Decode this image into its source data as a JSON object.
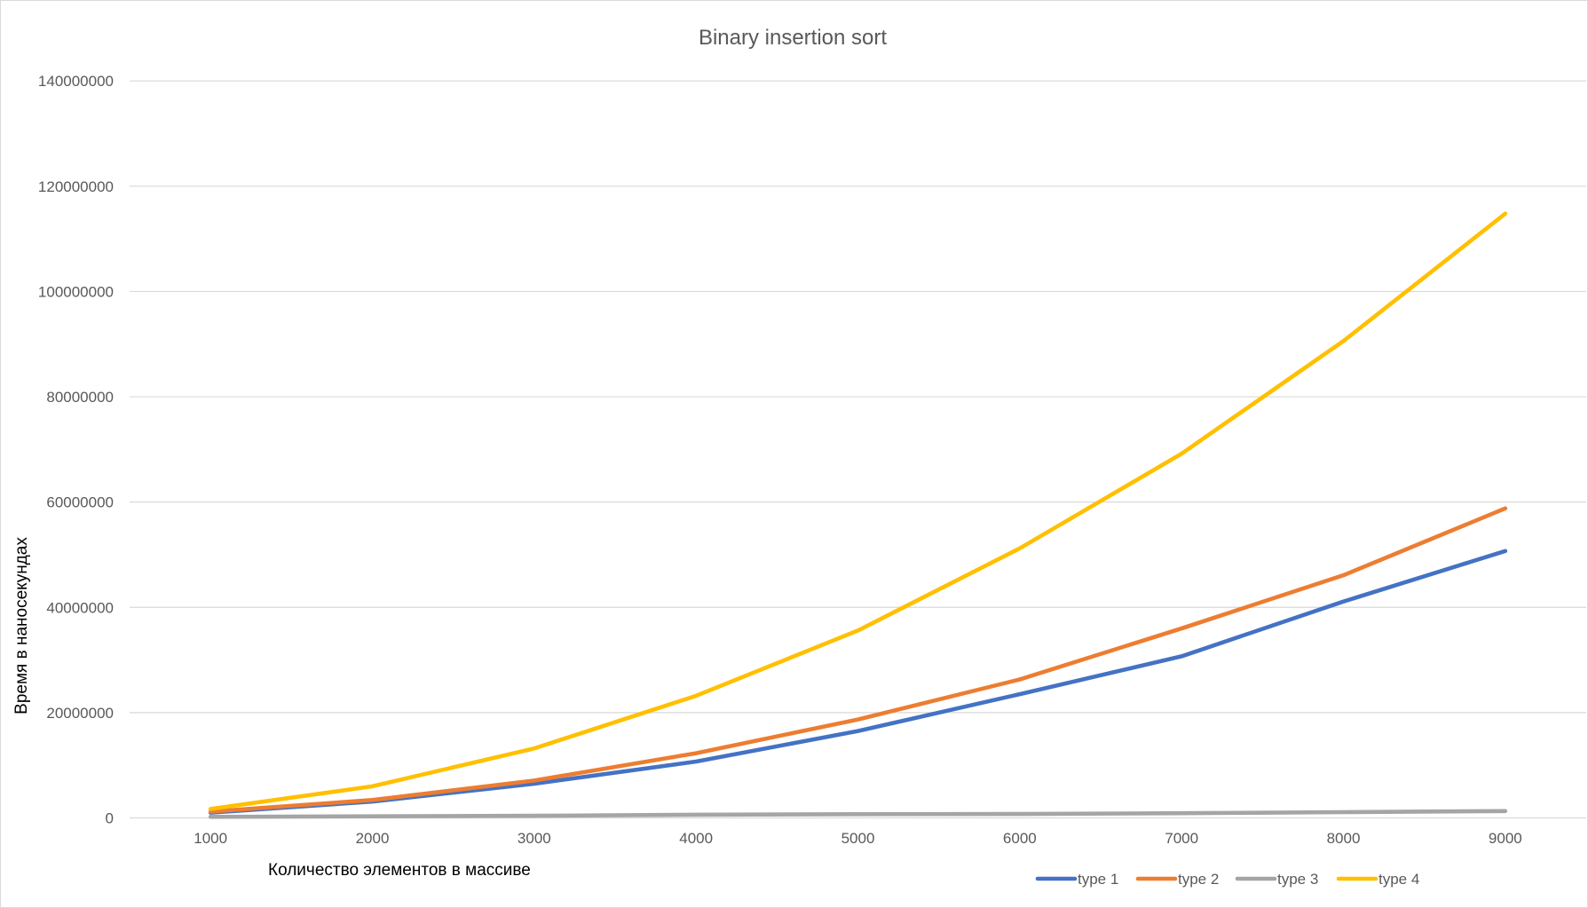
{
  "chart_data": {
    "type": "line",
    "title": "Binary insertion sort",
    "xlabel": "Количество элементов в массиве",
    "ylabel": "Время в наносекундах",
    "categories": [
      1000,
      2000,
      3000,
      4000,
      5000,
      6000,
      7000,
      8000,
      9000
    ],
    "ylim": [
      0,
      140000000
    ],
    "yticks": [
      0,
      20000000,
      40000000,
      60000000,
      80000000,
      100000000,
      120000000,
      140000000
    ],
    "grid": true,
    "legend": "bottom-right",
    "series": [
      {
        "name": "type 1",
        "color": "#4472C4",
        "values": [
          1000000,
          3100000,
          6500000,
          10700000,
          16500000,
          23500000,
          30700000,
          41100000,
          50700000
        ]
      },
      {
        "name": "type 2",
        "color": "#ED7D31",
        "values": [
          1200000,
          3400000,
          7100000,
          12300000,
          18700000,
          26300000,
          36000000,
          46100000,
          58800000
        ]
      },
      {
        "name": "type 3",
        "color": "#A5A5A5",
        "values": [
          200000,
          300000,
          400000,
          600000,
          700000,
          750000,
          900000,
          1100000,
          1300000
        ]
      },
      {
        "name": "type 4",
        "color": "#FFC000",
        "values": [
          1700000,
          6000000,
          13200000,
          23200000,
          35600000,
          51200000,
          69200000,
          90600000,
          114800000
        ]
      }
    ]
  }
}
